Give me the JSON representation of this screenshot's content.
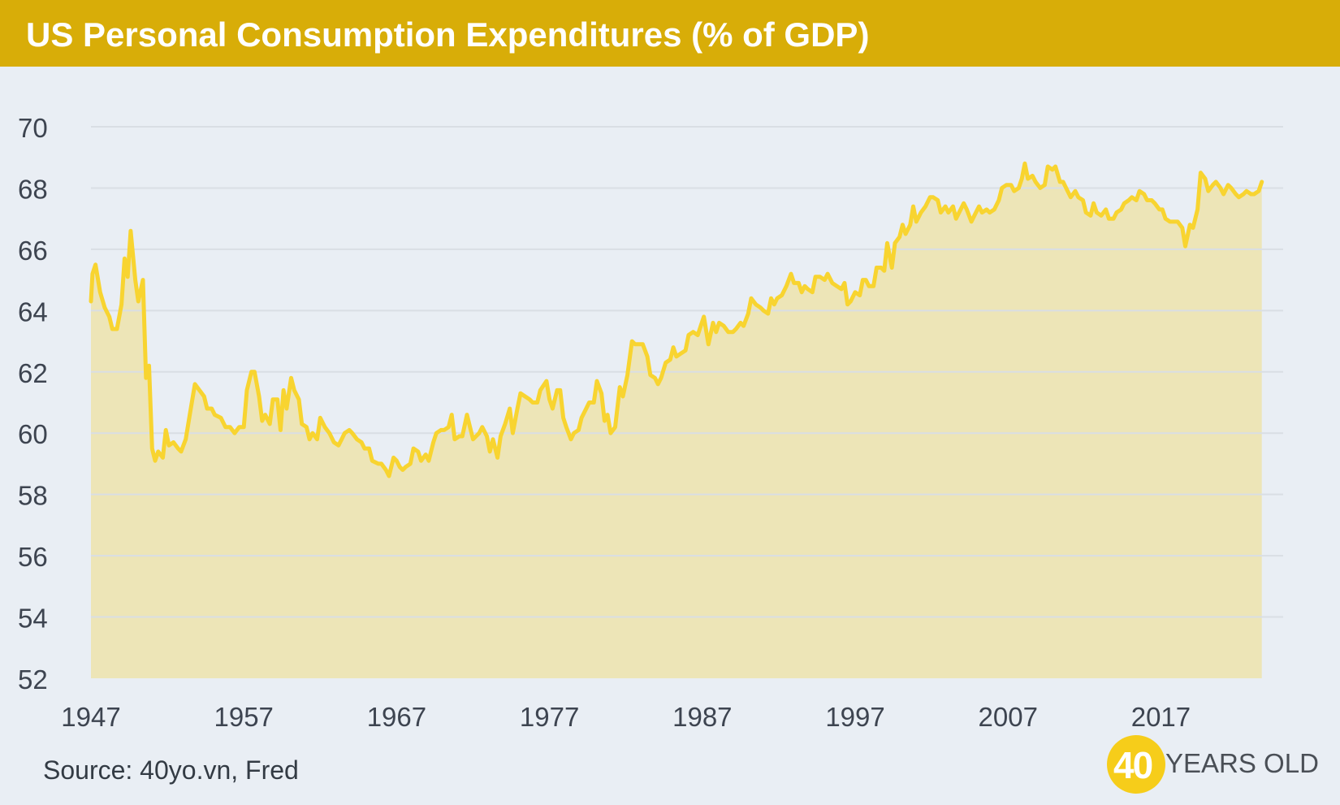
{
  "header": {
    "title": "US Personal Consumption Expenditures (% of GDP)"
  },
  "footer": {
    "source": "Source: 40yo.vn, Fred"
  },
  "logo": {
    "number": "40",
    "text": "YEARS OLD"
  },
  "colors": {
    "header": "#d8ad08",
    "line": "#f8d430",
    "area": "#ede5b7",
    "background": "#e9eef4",
    "grid": "#d9dee4"
  },
  "chart_data": {
    "type": "area",
    "title": "US Personal Consumption Expenditures (% of GDP)",
    "xlabel": "",
    "ylabel": "",
    "xlim": [
      1947,
      2025
    ],
    "ylim": [
      52,
      70
    ],
    "yticks": [
      52,
      54,
      56,
      58,
      60,
      62,
      64,
      66,
      68,
      70
    ],
    "xticks": [
      1947,
      1957,
      1967,
      1977,
      1987,
      1997,
      2007,
      2017
    ],
    "grid": true,
    "series": [
      {
        "name": "",
        "points": [
          [
            1947.0,
            64.3
          ],
          [
            1947.1,
            65.2
          ],
          [
            1947.3,
            65.5
          ],
          [
            1947.6,
            64.6
          ],
          [
            1947.9,
            64.1
          ],
          [
            1948.2,
            63.8
          ],
          [
            1948.4,
            63.4
          ],
          [
            1948.7,
            63.4
          ],
          [
            1949.0,
            64.2
          ],
          [
            1949.2,
            65.7
          ],
          [
            1949.4,
            65.1
          ],
          [
            1949.6,
            66.6
          ],
          [
            1949.9,
            65.0
          ],
          [
            1950.1,
            64.3
          ],
          [
            1950.4,
            65.0
          ],
          [
            1950.6,
            61.8
          ],
          [
            1950.8,
            62.2
          ],
          [
            1951.0,
            59.5
          ],
          [
            1951.2,
            59.1
          ],
          [
            1951.4,
            59.4
          ],
          [
            1951.7,
            59.2
          ],
          [
            1951.9,
            60.1
          ],
          [
            1952.1,
            59.6
          ],
          [
            1952.4,
            59.7
          ],
          [
            1952.7,
            59.5
          ],
          [
            1952.9,
            59.4
          ],
          [
            1953.2,
            59.8
          ],
          [
            1953.5,
            60.7
          ],
          [
            1953.8,
            61.6
          ],
          [
            1954.1,
            61.4
          ],
          [
            1954.4,
            61.2
          ],
          [
            1954.6,
            60.8
          ],
          [
            1954.9,
            60.8
          ],
          [
            1955.1,
            60.6
          ],
          [
            1955.5,
            60.5
          ],
          [
            1955.8,
            60.2
          ],
          [
            1956.1,
            60.2
          ],
          [
            1956.4,
            60.0
          ],
          [
            1956.7,
            60.2
          ],
          [
            1957.0,
            60.2
          ],
          [
            1957.2,
            61.4
          ],
          [
            1957.5,
            62.0
          ],
          [
            1957.7,
            62.0
          ],
          [
            1958.0,
            61.2
          ],
          [
            1958.2,
            60.4
          ],
          [
            1958.4,
            60.6
          ],
          [
            1958.7,
            60.3
          ],
          [
            1958.9,
            61.1
          ],
          [
            1959.2,
            61.1
          ],
          [
            1959.4,
            60.1
          ],
          [
            1959.6,
            61.4
          ],
          [
            1959.8,
            60.8
          ],
          [
            1960.1,
            61.8
          ],
          [
            1960.3,
            61.4
          ],
          [
            1960.6,
            61.1
          ],
          [
            1960.8,
            60.3
          ],
          [
            1961.1,
            60.2
          ],
          [
            1961.3,
            59.8
          ],
          [
            1961.5,
            60.0
          ],
          [
            1961.8,
            59.8
          ],
          [
            1962.0,
            60.5
          ],
          [
            1962.3,
            60.2
          ],
          [
            1962.6,
            60.0
          ],
          [
            1962.9,
            59.7
          ],
          [
            1963.2,
            59.6
          ],
          [
            1963.4,
            59.8
          ],
          [
            1963.6,
            60.0
          ],
          [
            1963.9,
            60.1
          ],
          [
            1964.1,
            60.0
          ],
          [
            1964.4,
            59.8
          ],
          [
            1964.7,
            59.7
          ],
          [
            1964.9,
            59.5
          ],
          [
            1965.2,
            59.5
          ],
          [
            1965.4,
            59.1
          ],
          [
            1965.8,
            59.0
          ],
          [
            1966.0,
            59.0
          ],
          [
            1966.3,
            58.8
          ],
          [
            1966.5,
            58.6
          ],
          [
            1966.8,
            59.2
          ],
          [
            1967.0,
            59.1
          ],
          [
            1967.2,
            58.9
          ],
          [
            1967.4,
            58.8
          ],
          [
            1967.6,
            58.9
          ],
          [
            1967.9,
            59.0
          ],
          [
            1968.1,
            59.5
          ],
          [
            1968.4,
            59.4
          ],
          [
            1968.6,
            59.1
          ],
          [
            1968.9,
            59.3
          ],
          [
            1969.1,
            59.1
          ],
          [
            1969.4,
            59.7
          ],
          [
            1969.6,
            60.0
          ],
          [
            1969.9,
            60.1
          ],
          [
            1970.1,
            60.1
          ],
          [
            1970.4,
            60.2
          ],
          [
            1970.6,
            60.6
          ],
          [
            1970.8,
            59.8
          ],
          [
            1971.1,
            59.9
          ],
          [
            1971.3,
            59.9
          ],
          [
            1971.6,
            60.6
          ],
          [
            1971.8,
            60.2
          ],
          [
            1972.0,
            59.8
          ],
          [
            1972.4,
            60.0
          ],
          [
            1972.6,
            60.2
          ],
          [
            1972.9,
            59.9
          ],
          [
            1973.1,
            59.4
          ],
          [
            1973.3,
            59.8
          ],
          [
            1973.6,
            59.2
          ],
          [
            1973.8,
            59.9
          ],
          [
            1974.1,
            60.3
          ],
          [
            1974.4,
            60.8
          ],
          [
            1974.6,
            60.0
          ],
          [
            1974.9,
            60.8
          ],
          [
            1975.1,
            61.3
          ],
          [
            1975.4,
            61.2
          ],
          [
            1975.7,
            61.1
          ],
          [
            1975.9,
            61.0
          ],
          [
            1976.2,
            61.0
          ],
          [
            1976.4,
            61.4
          ],
          [
            1976.8,
            61.7
          ],
          [
            1977.0,
            61.1
          ],
          [
            1977.2,
            60.8
          ],
          [
            1977.5,
            61.4
          ],
          [
            1977.7,
            61.4
          ],
          [
            1977.9,
            60.5
          ],
          [
            1978.1,
            60.2
          ],
          [
            1978.4,
            59.8
          ],
          [
            1978.6,
            60.0
          ],
          [
            1978.9,
            60.1
          ],
          [
            1979.1,
            60.5
          ],
          [
            1979.4,
            60.8
          ],
          [
            1979.6,
            61.0
          ],
          [
            1979.9,
            61.0
          ],
          [
            1980.1,
            61.7
          ],
          [
            1980.4,
            61.3
          ],
          [
            1980.6,
            60.4
          ],
          [
            1980.8,
            60.6
          ],
          [
            1981.0,
            60.0
          ],
          [
            1981.3,
            60.2
          ],
          [
            1981.6,
            61.5
          ],
          [
            1981.8,
            61.2
          ],
          [
            1982.1,
            61.9
          ],
          [
            1982.4,
            63.0
          ],
          [
            1982.6,
            62.9
          ],
          [
            1982.9,
            62.9
          ],
          [
            1983.1,
            62.9
          ],
          [
            1983.4,
            62.5
          ],
          [
            1983.6,
            61.9
          ],
          [
            1983.9,
            61.8
          ],
          [
            1984.1,
            61.6
          ],
          [
            1984.3,
            61.8
          ],
          [
            1984.6,
            62.3
          ],
          [
            1984.9,
            62.4
          ],
          [
            1985.1,
            62.8
          ],
          [
            1985.3,
            62.5
          ],
          [
            1985.6,
            62.6
          ],
          [
            1985.9,
            62.7
          ],
          [
            1986.1,
            63.2
          ],
          [
            1986.4,
            63.3
          ],
          [
            1986.7,
            63.2
          ],
          [
            1986.9,
            63.5
          ],
          [
            1987.1,
            63.8
          ],
          [
            1987.4,
            62.9
          ],
          [
            1987.7,
            63.6
          ],
          [
            1987.9,
            63.3
          ],
          [
            1988.1,
            63.6
          ],
          [
            1988.4,
            63.5
          ],
          [
            1988.7,
            63.3
          ],
          [
            1989.0,
            63.3
          ],
          [
            1989.2,
            63.4
          ],
          [
            1989.5,
            63.6
          ],
          [
            1989.7,
            63.5
          ],
          [
            1990.0,
            63.9
          ],
          [
            1990.2,
            64.4
          ],
          [
            1990.5,
            64.2
          ],
          [
            1990.8,
            64.1
          ],
          [
            1991.0,
            64.0
          ],
          [
            1991.3,
            63.9
          ],
          [
            1991.5,
            64.4
          ],
          [
            1991.7,
            64.2
          ],
          [
            1991.9,
            64.4
          ],
          [
            1992.2,
            64.5
          ],
          [
            1992.5,
            64.8
          ],
          [
            1992.8,
            65.2
          ],
          [
            1993.0,
            64.9
          ],
          [
            1993.3,
            64.9
          ],
          [
            1993.5,
            64.6
          ],
          [
            1993.7,
            64.8
          ],
          [
            1993.9,
            64.7
          ],
          [
            1994.2,
            64.6
          ],
          [
            1994.4,
            65.1
          ],
          [
            1994.7,
            65.1
          ],
          [
            1995.0,
            65.0
          ],
          [
            1995.2,
            65.2
          ],
          [
            1995.5,
            64.9
          ],
          [
            1995.8,
            64.8
          ],
          [
            1996.1,
            64.7
          ],
          [
            1996.3,
            64.9
          ],
          [
            1996.5,
            64.2
          ],
          [
            1996.7,
            64.3
          ],
          [
            1997.0,
            64.6
          ],
          [
            1997.3,
            64.5
          ],
          [
            1997.5,
            65.0
          ],
          [
            1997.7,
            65.0
          ],
          [
            1997.9,
            64.8
          ],
          [
            1998.2,
            64.8
          ],
          [
            1998.4,
            65.4
          ],
          [
            1998.7,
            65.4
          ],
          [
            1998.9,
            65.3
          ],
          [
            1999.1,
            66.2
          ],
          [
            1999.4,
            65.4
          ],
          [
            1999.6,
            66.2
          ],
          [
            1999.9,
            66.4
          ],
          [
            2000.1,
            66.8
          ],
          [
            2000.3,
            66.5
          ],
          [
            2000.6,
            66.8
          ],
          [
            2000.8,
            67.4
          ],
          [
            2001.0,
            66.9
          ],
          [
            2001.3,
            67.2
          ],
          [
            2001.6,
            67.4
          ],
          [
            2001.9,
            67.7
          ],
          [
            2002.1,
            67.7
          ],
          [
            2002.4,
            67.6
          ],
          [
            2002.6,
            67.2
          ],
          [
            2002.9,
            67.4
          ],
          [
            2003.1,
            67.2
          ],
          [
            2003.4,
            67.4
          ],
          [
            2003.6,
            67.0
          ],
          [
            2003.8,
            67.2
          ],
          [
            2004.1,
            67.5
          ],
          [
            2004.3,
            67.3
          ],
          [
            2004.6,
            66.9
          ],
          [
            2004.8,
            67.1
          ],
          [
            2005.1,
            67.4
          ],
          [
            2005.3,
            67.2
          ],
          [
            2005.6,
            67.3
          ],
          [
            2005.8,
            67.2
          ],
          [
            2006.1,
            67.3
          ],
          [
            2006.4,
            67.6
          ],
          [
            2006.6,
            68.0
          ],
          [
            2006.9,
            68.1
          ],
          [
            2007.2,
            68.1
          ],
          [
            2007.4,
            67.9
          ],
          [
            2007.7,
            68.0
          ],
          [
            2007.9,
            68.3
          ],
          [
            2008.1,
            68.8
          ],
          [
            2008.3,
            68.3
          ],
          [
            2008.6,
            68.4
          ],
          [
            2008.8,
            68.2
          ],
          [
            2009.1,
            68.0
          ],
          [
            2009.4,
            68.1
          ],
          [
            2009.6,
            68.7
          ],
          [
            2009.9,
            68.6
          ],
          [
            2010.1,
            68.7
          ],
          [
            2010.4,
            68.2
          ],
          [
            2010.6,
            68.2
          ],
          [
            2010.9,
            67.9
          ],
          [
            2011.1,
            67.7
          ],
          [
            2011.4,
            67.9
          ],
          [
            2011.6,
            67.7
          ],
          [
            2011.9,
            67.6
          ],
          [
            2012.1,
            67.2
          ],
          [
            2012.4,
            67.1
          ],
          [
            2012.6,
            67.5
          ],
          [
            2012.8,
            67.2
          ],
          [
            2013.1,
            67.1
          ],
          [
            2013.4,
            67.3
          ],
          [
            2013.6,
            67.0
          ],
          [
            2013.9,
            67.0
          ],
          [
            2014.1,
            67.2
          ],
          [
            2014.4,
            67.3
          ],
          [
            2014.6,
            67.5
          ],
          [
            2014.9,
            67.6
          ],
          [
            2015.1,
            67.7
          ],
          [
            2015.4,
            67.6
          ],
          [
            2015.6,
            67.9
          ],
          [
            2015.9,
            67.8
          ],
          [
            2016.1,
            67.6
          ],
          [
            2016.4,
            67.6
          ],
          [
            2016.6,
            67.5
          ],
          [
            2016.9,
            67.3
          ],
          [
            2017.1,
            67.3
          ],
          [
            2017.3,
            67.0
          ],
          [
            2017.6,
            66.9
          ],
          [
            2017.9,
            66.9
          ],
          [
            2018.1,
            66.9
          ],
          [
            2018.4,
            66.7
          ],
          [
            2018.6,
            66.1
          ],
          [
            2018.9,
            66.8
          ],
          [
            2019.1,
            66.7
          ],
          [
            2019.4,
            67.3
          ],
          [
            2019.6,
            68.5
          ],
          [
            2019.9,
            68.3
          ],
          [
            2020.1,
            67.9
          ],
          [
            2020.4,
            68.1
          ],
          [
            2020.6,
            68.2
          ],
          [
            2020.9,
            68.0
          ],
          [
            2021.1,
            67.8
          ],
          [
            2021.4,
            68.1
          ],
          [
            2021.6,
            68.0
          ],
          [
            2021.9,
            67.8
          ],
          [
            2022.1,
            67.7
          ],
          [
            2022.4,
            67.8
          ],
          [
            2022.6,
            67.9
          ],
          [
            2022.9,
            67.8
          ],
          [
            2023.1,
            67.8
          ],
          [
            2023.4,
            67.9
          ],
          [
            2023.6,
            68.2
          ]
        ]
      }
    ]
  }
}
